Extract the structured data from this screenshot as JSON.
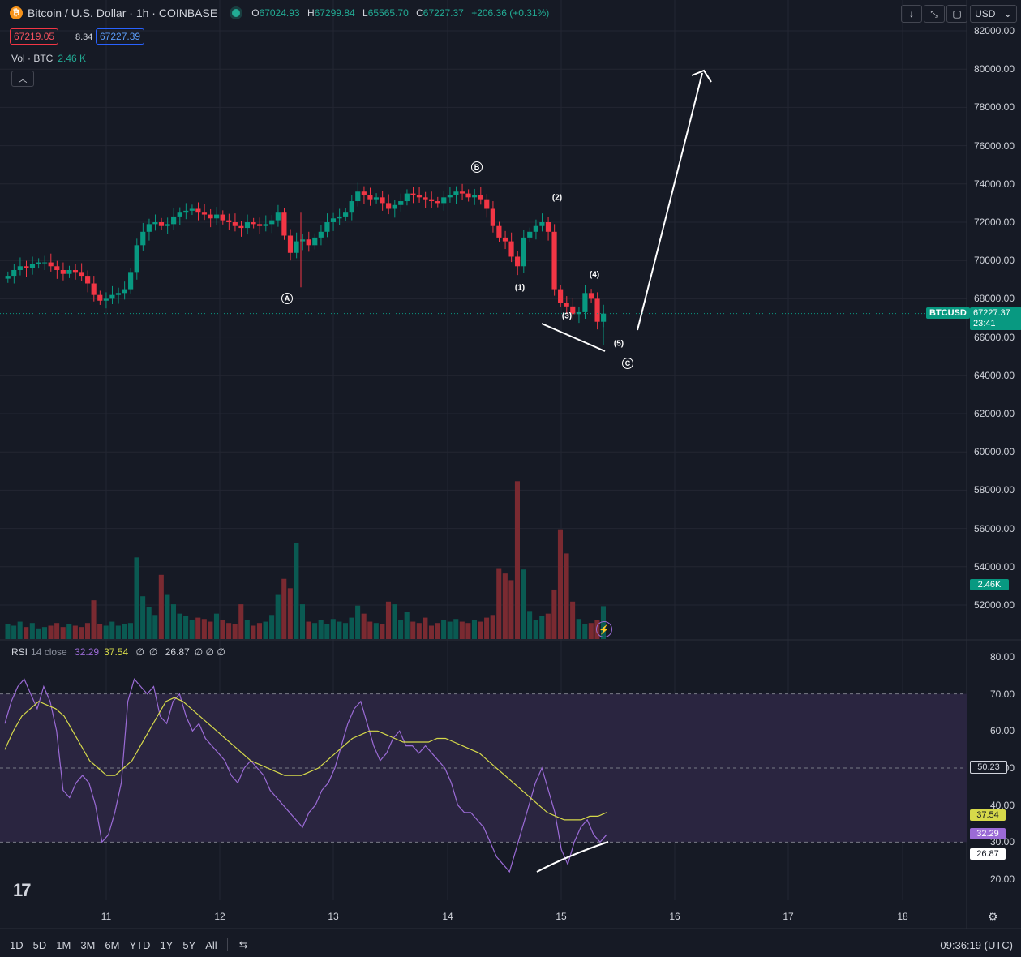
{
  "header": {
    "symbol_title": "Bitcoin / U.S. Dollar · 1h · COINBASE",
    "ohlc": {
      "o_label": "O",
      "o": "67024.93",
      "h_label": "H",
      "h": "67299.84",
      "l_label": "L",
      "l": "65565.70",
      "c_label": "C",
      "c": "67227.37",
      "change": "+206.36 (+0.31%)"
    },
    "bid": "67219.05",
    "spread": "8.34",
    "ask": "67227.39",
    "volume_label": "Vol · BTC",
    "volume_value": "2.46 K",
    "collapse_icon": "chevron-up-icon"
  },
  "toolbar": {
    "currency": "USD",
    "icons": [
      "download-icon",
      "collapse-icon",
      "fullscreen-icon",
      "chevron-down-icon"
    ]
  },
  "rsi": {
    "name": "RSI",
    "params": "14 close",
    "value": "32.29",
    "ma": "37.54",
    "na1": "∅",
    "na2": "∅",
    "divergence": "26.87",
    "na3": "∅ ∅ ∅"
  },
  "price_axis": [
    "82000.00",
    "80000.00",
    "78000.00",
    "76000.00",
    "74000.00",
    "72000.00",
    "70000.00",
    "68000.00",
    "66000.00",
    "64000.00",
    "62000.00",
    "60000.00",
    "58000.00",
    "56000.00",
    "54000.00",
    "52000.00"
  ],
  "rsi_axis": [
    "80.00",
    "70.00",
    "60.00",
    "50.00",
    "40.00",
    "30.00",
    "20.00"
  ],
  "time_axis": [
    "11",
    "12",
    "13",
    "14",
    "15",
    "16",
    "17",
    "18"
  ],
  "tags": {
    "ticker": "BTCUSD",
    "price": "67227.37",
    "countdown": "23:41",
    "volume": "2.46K",
    "rsi_mid": "50.23",
    "rsi_ma": "37.54",
    "rsi_val": "32.29",
    "rsi_div": "26.87"
  },
  "waves": {
    "A": "A",
    "B": "B",
    "C": "C",
    "w1": "(1)",
    "w2": "(2)",
    "w3": "(3)",
    "w4": "(4)",
    "w5": "(5)"
  },
  "ranges": [
    "1D",
    "5D",
    "1M",
    "3M",
    "6M",
    "YTD",
    "1Y",
    "5Y",
    "All"
  ],
  "clock": "09:36:19 (UTC)",
  "logo": "17",
  "colors": {
    "bg": "#161a25",
    "up": "#089981",
    "down": "#f23645",
    "rsi_line": "#9b6bd6",
    "rsi_ma": "#d6d94a",
    "rsi_band": "#2a2540"
  },
  "chart_data": {
    "type": "candlestick",
    "title": "Bitcoin / U.S. Dollar · 1h · COINBASE",
    "x_labels": [
      "11",
      "12",
      "13",
      "14",
      "15",
      "16",
      "17",
      "18"
    ],
    "ylim": [
      50000,
      82500
    ],
    "closes": [
      69200,
      69500,
      69700,
      69600,
      69800,
      69900,
      69900,
      69700,
      69500,
      69300,
      69500,
      69400,
      69200,
      68800,
      68200,
      67900,
      68000,
      68200,
      68300,
      68500,
      69400,
      70800,
      71500,
      71900,
      72000,
      71800,
      71900,
      72300,
      72500,
      72600,
      72700,
      72500,
      72400,
      72200,
      72400,
      72100,
      72000,
      71800,
      71700,
      72000,
      71900,
      71800,
      71900,
      72100,
      72500,
      71300,
      70400,
      71000,
      71100,
      70800,
      71200,
      71500,
      72000,
      72200,
      72300,
      72500,
      73100,
      73600,
      73400,
      73200,
      73300,
      73000,
      72700,
      72900,
      73100,
      73500,
      73400,
      73300,
      73200,
      73100,
      73000,
      73300,
      73400,
      73600,
      73500,
      73300,
      73400,
      73200,
      72700,
      71800,
      71200,
      71000,
      70200,
      69700,
      71200,
      71500,
      71800,
      72000,
      71500,
      68500,
      67800,
      67600,
      67200,
      67300,
      68300,
      68000,
      66800,
      67227
    ],
    "volume_k": [
      1.1,
      1.0,
      1.3,
      0.9,
      1.2,
      0.8,
      0.9,
      1.0,
      1.2,
      0.9,
      1.1,
      1.0,
      0.9,
      1.2,
      2.9,
      1.1,
      1.0,
      1.3,
      1.0,
      1.1,
      1.2,
      6.1,
      3.2,
      2.4,
      1.8,
      4.8,
      3.3,
      2.6,
      1.9,
      1.7,
      1.4,
      1.6,
      1.5,
      1.3,
      1.9,
      1.4,
      1.2,
      1.1,
      2.6,
      1.4,
      1.0,
      1.2,
      1.3,
      1.8,
      3.3,
      4.5,
      3.8,
      7.2,
      2.6,
      1.3,
      1.2,
      1.4,
      1.1,
      1.5,
      1.3,
      1.2,
      1.6,
      2.5,
      1.9,
      1.3,
      1.2,
      1.1,
      2.8,
      2.6,
      1.4,
      2.0,
      1.3,
      1.2,
      1.6,
      1.0,
      1.2,
      1.4,
      1.3,
      1.5,
      1.3,
      1.2,
      1.4,
      1.3,
      1.6,
      1.8,
      5.3,
      4.9,
      4.4,
      11.8,
      5.2,
      2.1,
      1.4,
      1.7,
      1.9,
      3.7,
      8.2,
      6.4,
      2.8,
      1.5,
      1.1,
      1.2,
      1.4,
      2.46
    ],
    "rsi": [
      62,
      68,
      72,
      74,
      70,
      66,
      72,
      68,
      60,
      44,
      42,
      46,
      48,
      46,
      40,
      30,
      32,
      38,
      46,
      68,
      74,
      72,
      70,
      72,
      64,
      62,
      68,
      70,
      64,
      60,
      62,
      58,
      56,
      54,
      52,
      48,
      46,
      50,
      52,
      50,
      48,
      44,
      42,
      40,
      38,
      36,
      34,
      38,
      40,
      44,
      46,
      50,
      56,
      62,
      66,
      68,
      62,
      56,
      52,
      54,
      58,
      60,
      56,
      56,
      54,
      56,
      54,
      52,
      50,
      46,
      40,
      38,
      38,
      36,
      34,
      30,
      26,
      24,
      22,
      28,
      34,
      40,
      46,
      50,
      44,
      38,
      28,
      24,
      30,
      34,
      36,
      32,
      30,
      32
    ],
    "rsi_ma": [
      55,
      60,
      64,
      66,
      68,
      67,
      66,
      64,
      60,
      56,
      52,
      50,
      48,
      48,
      50,
      52,
      56,
      60,
      64,
      68,
      69,
      68,
      66,
      64,
      62,
      60,
      58,
      56,
      54,
      52,
      51,
      50,
      49,
      48,
      48,
      48,
      49,
      50,
      52,
      54,
      56,
      58,
      59,
      60,
      60,
      59,
      58,
      57,
      57,
      57,
      57,
      58,
      58,
      57,
      56,
      55,
      54,
      52,
      50,
      48,
      46,
      44,
      42,
      40,
      38,
      37,
      36,
      36,
      36,
      37,
      37,
      38
    ],
    "rsi_ylim": [
      15,
      82
    ],
    "rsi_levels": [
      70,
      50,
      30
    ],
    "price_line": 67227.37
  }
}
